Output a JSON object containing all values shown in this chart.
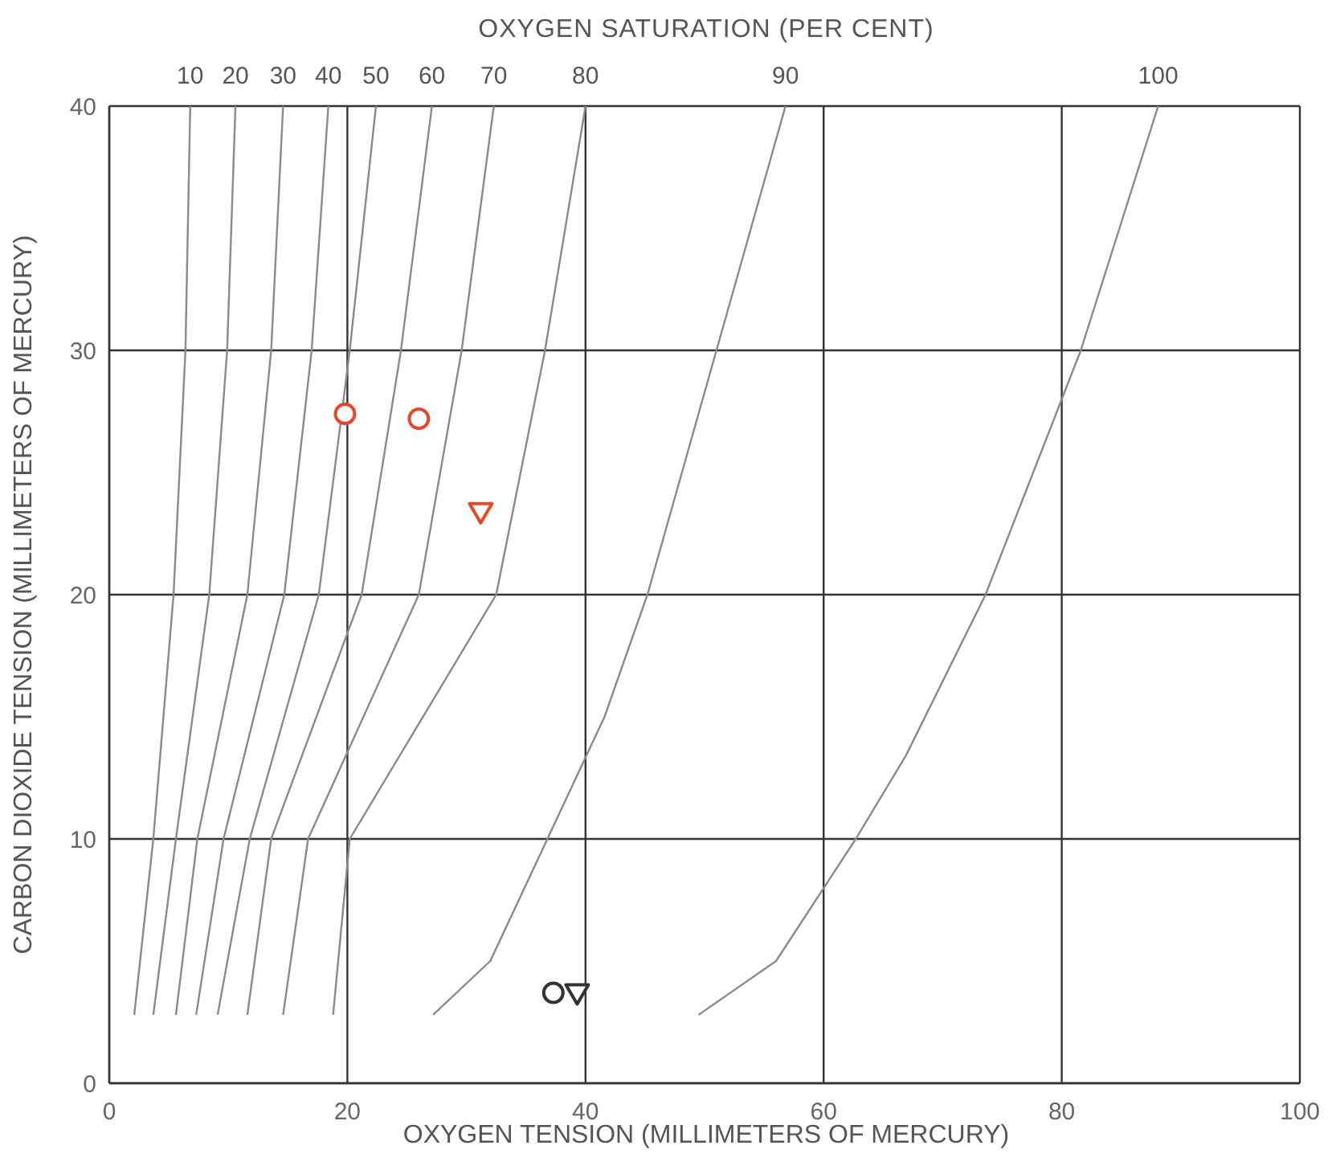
{
  "chart_data": {
    "type": "line",
    "x2label": "OXYGEN SATURATION (PER CENT)",
    "xlabel": "OXYGEN TENSION (MILLIMETERS OF MERCURY)",
    "ylabel": "CARBON DIOXIDE TENSION (MILLIMETERS OF MERCURY)",
    "xlim": [
      0,
      100
    ],
    "ylim": [
      0,
      40
    ],
    "xticks": [
      0,
      20,
      40,
      60,
      80,
      100
    ],
    "yticks": [
      0,
      10,
      20,
      30,
      40
    ],
    "grid": true,
    "legend": false,
    "series": [
      {
        "name": "10",
        "color": "#8a8a8a",
        "x": [
          2.1,
          3.7,
          5.4,
          6.4,
          6.8
        ],
        "values": [
          2.8,
          10,
          20,
          30,
          40
        ]
      },
      {
        "name": "20",
        "color": "#8a8a8a",
        "x": [
          3.7,
          5.6,
          8.4,
          9.9,
          10.6
        ],
        "values": [
          2.8,
          10,
          20,
          30,
          40
        ]
      },
      {
        "name": "30",
        "color": "#8a8a8a",
        "x": [
          5.6,
          7.4,
          11.6,
          13.6,
          14.6
        ],
        "values": [
          2.8,
          10,
          20,
          30,
          40
        ]
      },
      {
        "name": "40",
        "color": "#8a8a8a",
        "x": [
          7.3,
          9.6,
          14.7,
          17.0,
          18.4
        ],
        "values": [
          2.8,
          10,
          20,
          30,
          40
        ]
      },
      {
        "name": "50",
        "color": "#8a8a8a",
        "x": [
          9.1,
          11.8,
          17.6,
          20.2,
          22.4
        ],
        "values": [
          2.8,
          10,
          20,
          30,
          40
        ]
      },
      {
        "name": "60",
        "color": "#8a8a8a",
        "x": [
          11.6,
          13.6,
          21.2,
          24.5,
          27.1
        ],
        "values": [
          2.8,
          10,
          20,
          30,
          40
        ]
      },
      {
        "name": "70",
        "color": "#8a8a8a",
        "x": [
          14.6,
          16.7,
          26.0,
          29.6,
          32.3
        ],
        "values": [
          2.8,
          10,
          20,
          30,
          40
        ]
      },
      {
        "name": "80",
        "color": "#8a8a8a",
        "x": [
          18.8,
          20.2,
          32.5,
          36.6,
          40.0
        ],
        "values": [
          2.8,
          10,
          20,
          30,
          40
        ]
      },
      {
        "name": "90",
        "color": "#8a8a8a",
        "x": [
          27.2,
          32.0,
          41.6,
          45.2,
          51.0,
          56.8
        ],
        "values": [
          2.8,
          5,
          15,
          20,
          30,
          40
        ]
      },
      {
        "name": "100",
        "color": "#8a8a8a",
        "x": [
          49.5,
          56.0,
          62.7,
          66.9,
          73.6,
          81.6,
          88.1
        ],
        "values": [
          2.8,
          5,
          10,
          13.4,
          20,
          30,
          40
        ]
      },
      {
        "type": "scatter",
        "color": "#e5472a",
        "marker": "circle",
        "x": [
          19.8
        ],
        "values": [
          27.4
        ]
      },
      {
        "type": "scatter",
        "color": "#e5472a",
        "marker": "circle",
        "x": [
          26.0
        ],
        "values": [
          27.2
        ]
      },
      {
        "type": "scatter",
        "color": "#e5472a",
        "marker": "triangle",
        "x": [
          31.2
        ],
        "values": [
          23.4
        ]
      },
      {
        "type": "scatter",
        "color": "#333333",
        "marker": "circle",
        "x": [
          37.3
        ],
        "values": [
          3.7
        ]
      },
      {
        "type": "scatter",
        "color": "#333333",
        "marker": "triangle",
        "x": [
          39.3
        ],
        "values": [
          3.7
        ]
      }
    ]
  }
}
